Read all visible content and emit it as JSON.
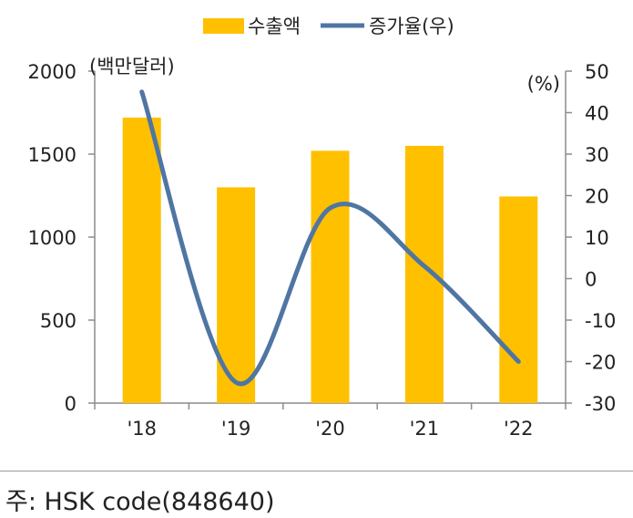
{
  "chart_data": {
    "type": "bar",
    "categories": [
      "'18",
      "'19",
      "'20",
      "'21",
      "'22"
    ],
    "series": [
      {
        "name": "수출액",
        "type": "bar",
        "axis": "left",
        "color": "#FFC000",
        "values": [
          1720,
          1300,
          1520,
          1550,
          1245
        ]
      },
      {
        "name": "증가율(우)",
        "type": "line",
        "axis": "right",
        "color": "#4F76A3",
        "values": [
          45,
          -25,
          17,
          3,
          -20
        ]
      }
    ],
    "left_axis": {
      "unit_label": "(백만달러)",
      "min": 0,
      "max": 2000,
      "ticks": [
        0,
        500,
        1000,
        1500,
        2000
      ]
    },
    "right_axis": {
      "unit_label": "(%)",
      "min": -30,
      "max": 50,
      "ticks": [
        -30,
        -20,
        -10,
        0,
        10,
        20,
        30,
        40,
        50
      ]
    },
    "legend_position": "top-center",
    "grid": false
  },
  "note": "주: HSK code(848640)"
}
